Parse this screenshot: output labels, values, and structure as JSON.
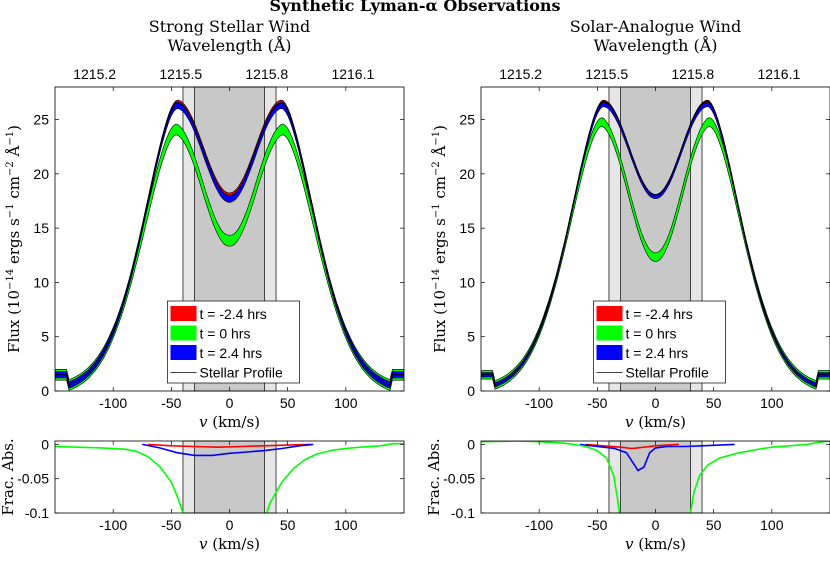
{
  "figure_title": "Synthetic Lyman-α Observations",
  "legend_labels": [
    "t = -2.4 hrs",
    "t = 0 hrs",
    "t = 2.4 hrs",
    "Stellar Profile"
  ],
  "colors": {
    "red": "#ff0000",
    "green": "#00ff00",
    "blue": "#0000ff",
    "black": "#000000",
    "shade_light": "#e6e6e6",
    "shade_dark": "#c8c8c8"
  },
  "chart_data": [
    {
      "type": "line",
      "panel": "left-top",
      "title": "Strong Stellar Wind",
      "top_axis_label": "Wavelength (Å)",
      "top_ticks": [
        1215.2,
        1215.5,
        1215.8,
        1216.1
      ],
      "xlabel": "v (km/s)",
      "ylabel": "Flux (10^-14 ergs s^-1 cm^-2 Å^-1)",
      "xlim": [
        -150,
        150
      ],
      "ylim": [
        0,
        28
      ],
      "xticks": [
        -100,
        -50,
        0,
        50,
        100
      ],
      "yticks": [
        0,
        5,
        10,
        15,
        20,
        25
      ],
      "shaded_light": [
        -40,
        40
      ],
      "shaded_dark": [
        -30,
        30
      ],
      "profile": {
        "peak": 26.5,
        "peak_v": 45,
        "center": 18.0,
        "wing_at_150": 1.5
      },
      "series": [
        {
          "name": "t = -2.4 hrs",
          "color": "red",
          "center": 18.0,
          "peak": 26.6,
          "band": 0.2
        },
        {
          "name": "t = 0 hrs",
          "color": "green",
          "center": 14.3,
          "peak": 25.0,
          "band": 0.5
        },
        {
          "name": "t = 2.4 hrs",
          "color": "blue",
          "center": 17.7,
          "peak": 26.4,
          "band": 0.3
        },
        {
          "name": "Stellar Profile",
          "color": "black",
          "center": 18.0,
          "peak": 26.5,
          "band": 0
        }
      ],
      "legend_position": "bottom-center"
    },
    {
      "type": "line",
      "panel": "right-top",
      "title": "Solar-Analogue Wind",
      "top_axis_label": "Wavelength (Å)",
      "top_ticks": [
        1215.2,
        1215.5,
        1215.8,
        1216.1
      ],
      "xlabel": "v (km/s)",
      "ylabel": "Flux (10^-14 ergs s^-1 cm^-2 Å^-1)",
      "xlim": [
        -150,
        150
      ],
      "ylim": [
        0,
        28
      ],
      "xticks": [
        -100,
        -50,
        0,
        50,
        100
      ],
      "yticks": [
        0,
        5,
        10,
        15,
        20,
        25
      ],
      "shaded_light": [
        -40,
        40
      ],
      "shaded_dark": [
        -30,
        30
      ],
      "profile": {
        "peak": 26.7,
        "peak_v": 45,
        "center": 18.0,
        "wing_at_150": 1.5
      },
      "series": [
        {
          "name": "t = -2.4 hrs",
          "color": "red",
          "center": 18.0,
          "peak": 26.7,
          "band": 0.1
        },
        {
          "name": "t = 0 hrs",
          "color": "green",
          "center": 12.5,
          "peak": 26.1,
          "band": 0.4
        },
        {
          "name": "t = 2.4 hrs",
          "color": "blue",
          "center": 18.0,
          "peak": 26.4,
          "band": 0.2
        },
        {
          "name": "Stellar Profile",
          "color": "black",
          "center": 18.0,
          "peak": 26.7,
          "band": 0
        }
      ],
      "legend_position": "bottom-center"
    },
    {
      "type": "line",
      "panel": "left-bottom",
      "xlabel": "v (km/s)",
      "ylabel": "Frac. Abs.",
      "xlim": [
        -150,
        150
      ],
      "ylim": [
        -0.1,
        0.005
      ],
      "xticks": [
        -100,
        -50,
        0,
        50,
        100
      ],
      "yticks": [
        0,
        -0.05,
        -0.1
      ],
      "ytick_labels": [
        "0",
        "-0.05",
        "-0.1"
      ],
      "shaded_light": [
        -40,
        40
      ],
      "shaded_dark": [
        -30,
        30
      ],
      "series": [
        {
          "name": "t = -2.4 hrs",
          "color": "red",
          "x": [
            -70,
            -50,
            -30,
            -10,
            10,
            30,
            50,
            70
          ],
          "y": [
            0,
            -0.002,
            -0.003,
            -0.004,
            -0.003,
            -0.002,
            -0.001,
            0
          ]
        },
        {
          "name": "t = 2.4 hrs",
          "color": "blue",
          "x": [
            -75,
            -60,
            -45,
            -30,
            -15,
            0,
            15,
            30,
            45,
            60,
            72
          ],
          "y": [
            0,
            -0.005,
            -0.012,
            -0.016,
            -0.016,
            -0.013,
            -0.011,
            -0.009,
            -0.006,
            -0.002,
            0
          ]
        },
        {
          "name": "t = 0 hrs",
          "color": "green",
          "x": [
            -150,
            -130,
            -110,
            -90,
            -80,
            -70,
            -60,
            -50,
            -45,
            -42,
            -40
          ],
          "y": [
            -0.003,
            -0.004,
            -0.005,
            -0.007,
            -0.01,
            -0.018,
            -0.032,
            -0.055,
            -0.075,
            -0.09,
            -0.1
          ]
        },
        {
          "name": "t = 0 hrs",
          "color": "green",
          "x": [
            32,
            35,
            40,
            45,
            55,
            65,
            75,
            90,
            105,
            120,
            130,
            140,
            150
          ],
          "y": [
            -0.1,
            -0.085,
            -0.07,
            -0.055,
            -0.035,
            -0.022,
            -0.014,
            -0.008,
            -0.005,
            -0.003,
            -0.002,
            0.001,
            0.001
          ]
        }
      ]
    },
    {
      "type": "line",
      "panel": "right-bottom",
      "xlabel": "v (km/s)",
      "ylabel": "Frac. Abs.",
      "xlim": [
        -150,
        150
      ],
      "ylim": [
        -0.1,
        0.005
      ],
      "xticks": [
        -100,
        -50,
        0,
        50,
        100
      ],
      "yticks": [
        0,
        -0.05,
        -0.1
      ],
      "ytick_labels": [
        "0",
        "-0.05",
        "-0.1"
      ],
      "shaded_light": [
        -40,
        40
      ],
      "shaded_dark": [
        -30,
        30
      ],
      "series": [
        {
          "name": "t = -2.4 hrs",
          "color": "red",
          "x": [
            -60,
            -45,
            -30,
            -20,
            -10,
            0,
            10,
            20
          ],
          "y": [
            0,
            -0.002,
            -0.004,
            -0.006,
            -0.004,
            -0.002,
            -0.001,
            0
          ]
        },
        {
          "name": "t = 2.4 hrs",
          "color": "blue",
          "x": [
            -65,
            -50,
            -35,
            -25,
            -20,
            -15,
            -10,
            -5,
            0,
            10,
            25,
            40,
            55,
            68
          ],
          "y": [
            0,
            -0.003,
            -0.006,
            -0.012,
            -0.025,
            -0.038,
            -0.033,
            -0.012,
            -0.005,
            -0.003,
            -0.003,
            -0.002,
            -0.001,
            0
          ]
        },
        {
          "name": "t = 0 hrs",
          "color": "green",
          "x": [
            -150,
            -120,
            -100,
            -80,
            -70,
            -60,
            -50,
            -42,
            -36,
            -33,
            -31
          ],
          "y": [
            0.004,
            0.005,
            0.004,
            0.002,
            0.0,
            -0.003,
            -0.009,
            -0.02,
            -0.045,
            -0.075,
            -0.1
          ]
        },
        {
          "name": "t = 0 hrs",
          "color": "green",
          "x": [
            30,
            33,
            38,
            45,
            55,
            70,
            85,
            100,
            115,
            130,
            140,
            150
          ],
          "y": [
            -0.1,
            -0.07,
            -0.045,
            -0.03,
            -0.02,
            -0.013,
            -0.008,
            -0.004,
            -0.002,
            0.0,
            0.003,
            0.005
          ]
        }
      ]
    }
  ]
}
